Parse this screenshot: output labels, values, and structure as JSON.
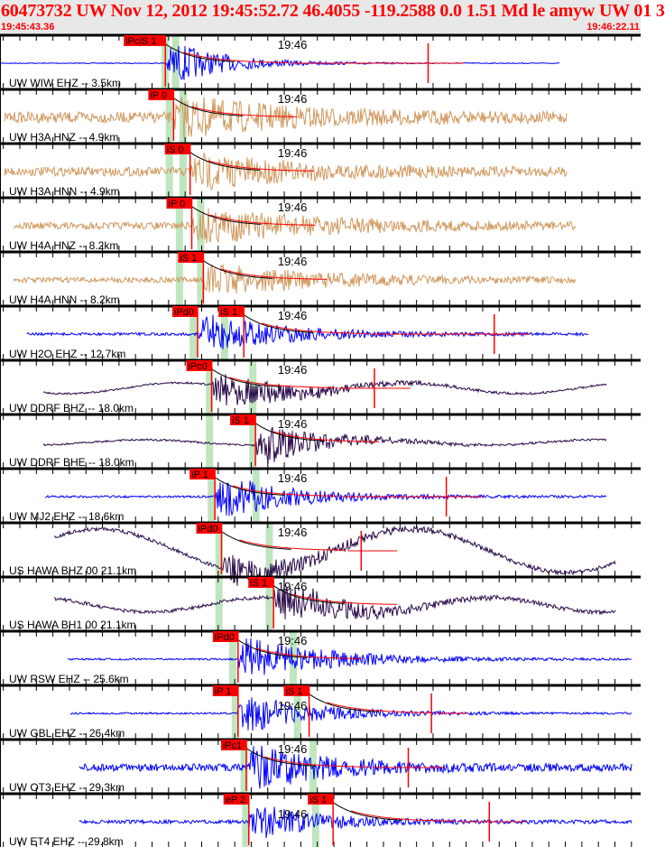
{
  "header": {
    "title": "60473732 UW Nov 12, 2012 19:45:52.72    46.4055 -119.2588  0.0 1.51 Md le amyw UW 01    3",
    "start_time": "19:45:43.36",
    "end_time": "19:46:22.11",
    "minute_mark": "19:46"
  },
  "colors": {
    "short_period": "#0000ff",
    "strong_motion": "#d0985e",
    "broadband": "#2a0a4a",
    "pick": "#ff0000",
    "predicted": "#bfe6bf"
  },
  "traces": [
    {
      "label": "UW WIW EHZ -- 3.5km",
      "km": 3.5,
      "kind": "short_period",
      "phases": [
        {
          "label": "iPciS 1",
          "t": 10.0
        }
      ],
      "marker_t": 25.9
    },
    {
      "label": "UW H3A HNZ -- 4.9km",
      "km": 4.9,
      "kind": "strong_motion",
      "phases": [
        {
          "label": "iP 0",
          "t": 10.5
        }
      ]
    },
    {
      "label": "UW H3A HNN -- 4.9km",
      "km": 4.9,
      "kind": "strong_motion",
      "phases": [
        {
          "label": "iS 0",
          "t": 11.5
        }
      ]
    },
    {
      "label": "UW H4A HNZ -- 8.2km",
      "km": 8.2,
      "kind": "strong_motion",
      "phases": [
        {
          "label": "iP 0",
          "t": 11.6
        }
      ]
    },
    {
      "label": "UW H4A HNN -- 8.2km",
      "km": 8.2,
      "kind": "strong_motion",
      "phases": [
        {
          "label": "iS 1",
          "t": 12.3
        }
      ]
    },
    {
      "label": "UW H2O EHZ -- 12.7km",
      "km": 12.7,
      "kind": "short_period",
      "phases": [
        {
          "label": "iPd0",
          "t": 11.95
        },
        {
          "label": "iS 1",
          "t": 14.75
        }
      ],
      "marker_t": 29.9
    },
    {
      "label": "UW DDRF BHZ -- 18.0km",
      "km": 18.0,
      "kind": "broadband",
      "phases": [
        {
          "label": "iPc0",
          "t": 12.8
        }
      ],
      "marker_t": 22.65
    },
    {
      "label": "UW DDRF BHE -- 18.0km",
      "km": 18.0,
      "kind": "broadband",
      "phases": [
        {
          "label": "iS 1",
          "t": 15.45
        }
      ]
    },
    {
      "label": "UW MJ2 EHZ -- 18.6km",
      "km": 18.6,
      "kind": "short_period",
      "phases": [
        {
          "label": "iP 1",
          "t": 13.0
        }
      ],
      "marker_t": 27.0
    },
    {
      "label": "US HAWA BHZ 00 21.1km",
      "km": 21.1,
      "kind": "broadband",
      "phases": [
        {
          "label": "iPd0",
          "t": 13.4
        }
      ],
      "marker_t": 21.85
    },
    {
      "label": "US HAWA BH1 00 21.1km",
      "km": 21.1,
      "kind": "broadband",
      "phases": [
        {
          "label": "iS 1",
          "t": 16.55
        }
      ]
    },
    {
      "label": "UW RSW EHZ -- 25.6km",
      "km": 25.6,
      "kind": "short_period",
      "phases": [
        {
          "label": "iPd0",
          "t": 14.4
        }
      ]
    },
    {
      "label": "UW GBL EHZ -- 26.4km",
      "km": 26.4,
      "kind": "short_period",
      "phases": [
        {
          "label": "iP 1",
          "t": 14.4
        },
        {
          "label": "iS 1",
          "t": 18.7
        }
      ],
      "marker_t": 26.1
    },
    {
      "label": "UW OT3 EHZ -- 29.3km",
      "km": 29.3,
      "kind": "short_period",
      "phases": [
        {
          "label": "iPc1",
          "t": 14.9
        }
      ],
      "marker_t": 24.7
    },
    {
      "label": "UW ET4 EHZ -- 29.8km",
      "km": 29.8,
      "kind": "short_period",
      "phases": [
        {
          "label": "eP 2",
          "t": 15.05
        },
        {
          "label": "iS 1",
          "t": 20.15
        }
      ],
      "marker_t": 29.6
    }
  ]
}
